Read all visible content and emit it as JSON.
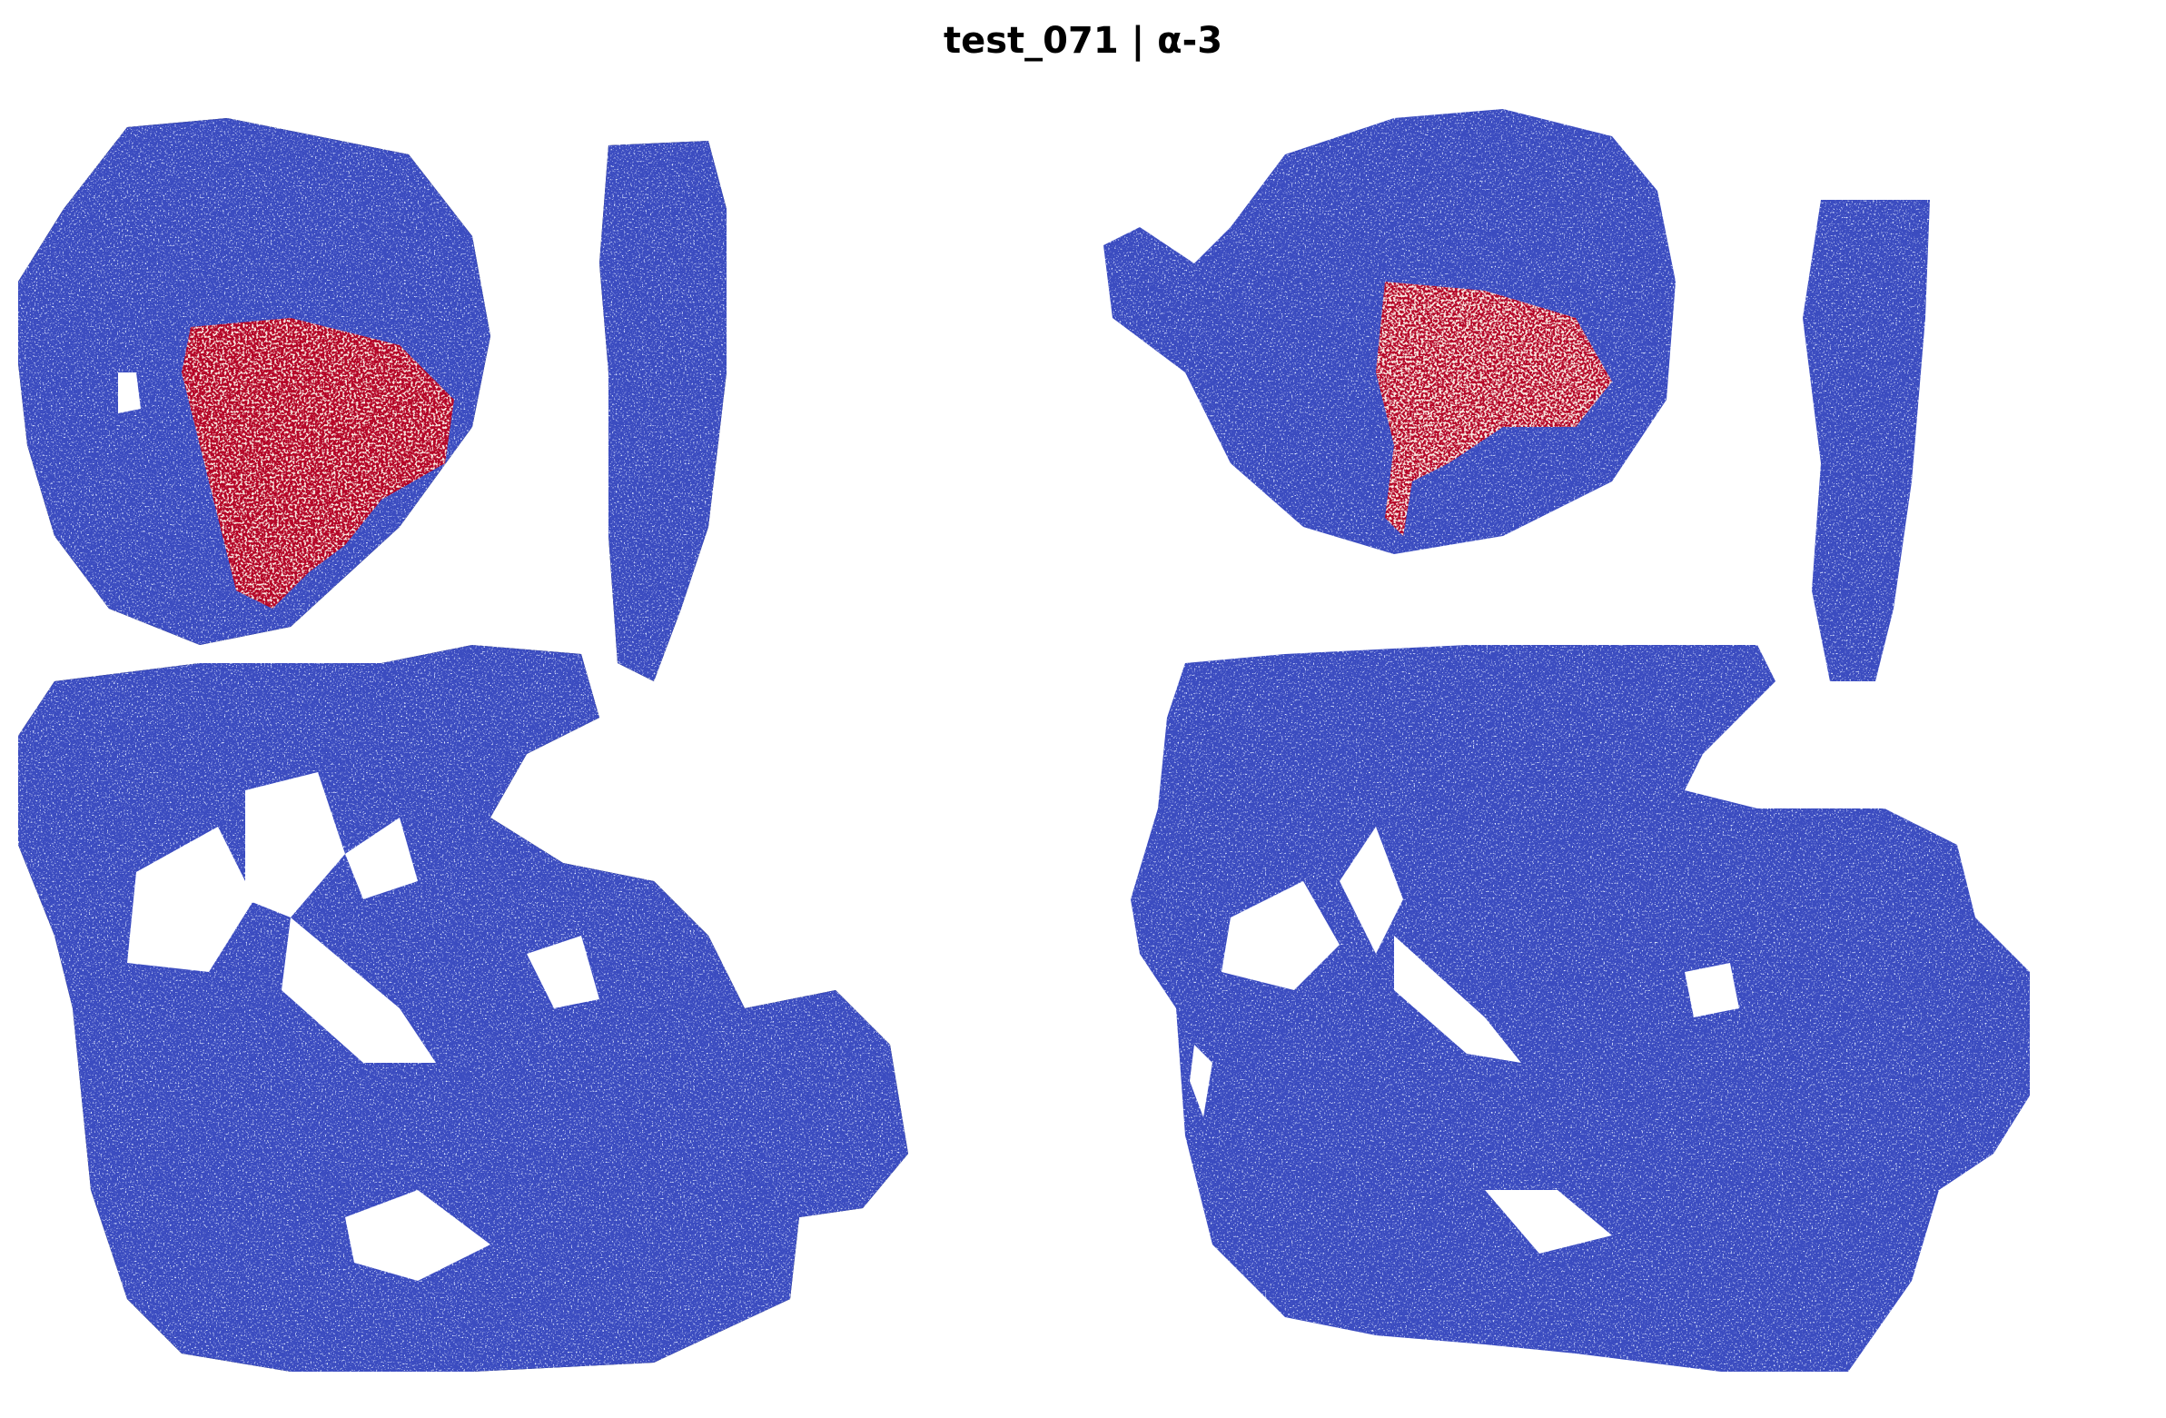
{
  "title": "test_071 | α-3",
  "colors": {
    "background": "#ffffff",
    "tissue_low": "#3b4cc0",
    "tissue_mid": "#8fb1fe",
    "tissue_light": "#dddddd",
    "hotspot": "#b40426"
  },
  "panels": [
    {
      "id": "left",
      "hotspot_intensity": "high"
    },
    {
      "id": "right",
      "hotspot_intensity": "medium"
    }
  ]
}
